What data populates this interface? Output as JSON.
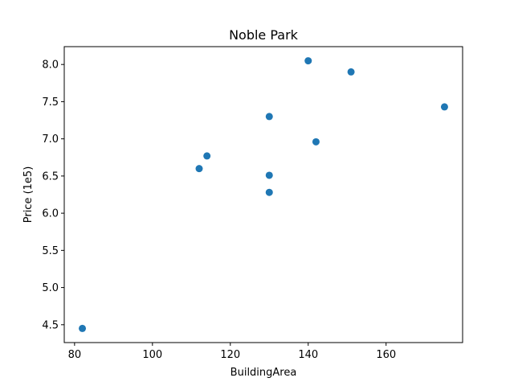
{
  "chart_data": {
    "type": "scatter",
    "title": "Noble Park",
    "xlabel": "BuildingArea",
    "ylabel": "Price (1e5)",
    "xlim": [
      77.35,
      179.65
    ],
    "ylim": [
      4.26,
      8.24
    ],
    "xticks": [
      80,
      100,
      120,
      140,
      160
    ],
    "yticks": [
      4.5,
      5.0,
      5.5,
      6.0,
      6.5,
      7.0,
      7.5,
      8.0
    ],
    "xtick_labels": [
      "80",
      "100",
      "120",
      "140",
      "160"
    ],
    "ytick_labels": [
      "4.5",
      "5.0",
      "5.5",
      "6.0",
      "6.5",
      "7.0",
      "7.5",
      "8.0"
    ],
    "grid": false,
    "point_color": "#1f77b4",
    "points": [
      {
        "x": 82,
        "y": 4.45
      },
      {
        "x": 112,
        "y": 6.6
      },
      {
        "x": 114,
        "y": 6.77
      },
      {
        "x": 130,
        "y": 7.3
      },
      {
        "x": 130,
        "y": 6.51
      },
      {
        "x": 130,
        "y": 6.28
      },
      {
        "x": 140,
        "y": 8.05
      },
      {
        "x": 142,
        "y": 6.96
      },
      {
        "x": 151,
        "y": 7.9
      },
      {
        "x": 175,
        "y": 7.43
      }
    ]
  }
}
